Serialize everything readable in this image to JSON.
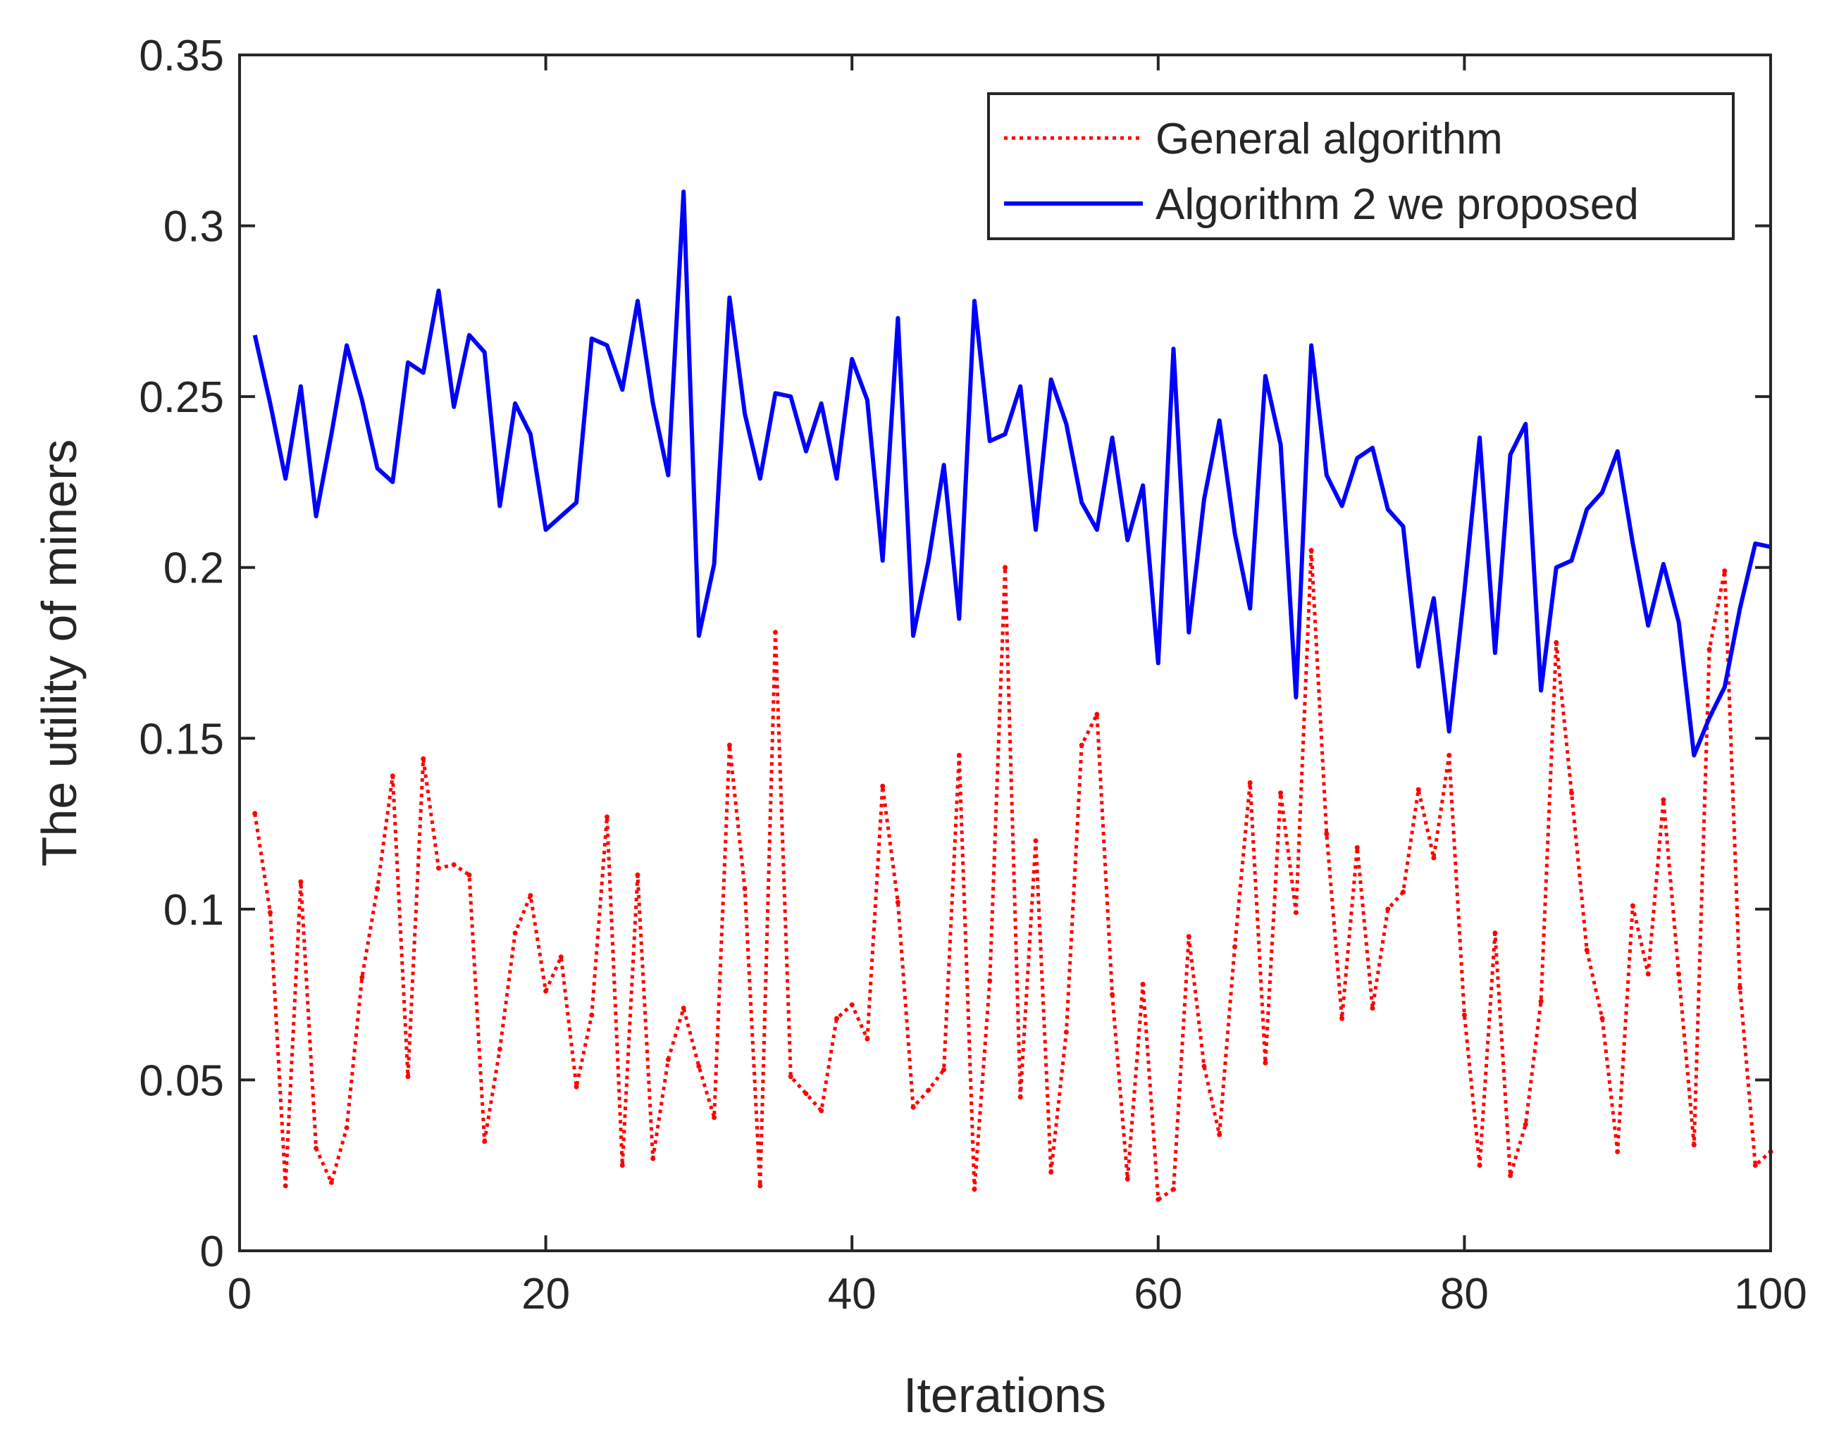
{
  "chart_data": {
    "type": "line",
    "title": "",
    "xlabel": "Iterations",
    "ylabel": "The utility of miners",
    "xlim": [
      0,
      100
    ],
    "ylim": [
      0,
      0.35
    ],
    "xticks": [
      0,
      20,
      40,
      60,
      80,
      100
    ],
    "xtick_labels": [
      "0",
      "20",
      "40",
      "60",
      "80",
      "100"
    ],
    "yticks": [
      0,
      0.05,
      0.1,
      0.15,
      0.2,
      0.25,
      0.3,
      0.35
    ],
    "ytick_labels": [
      "0",
      "0.05",
      "0.1",
      "0.15",
      "0.2",
      "0.25",
      "0.3",
      "0.35"
    ],
    "grid": false,
    "legend_position": "top-right",
    "x": [
      1,
      2,
      3,
      4,
      5,
      6,
      7,
      8,
      9,
      10,
      11,
      12,
      13,
      14,
      15,
      16,
      17,
      18,
      19,
      20,
      21,
      22,
      23,
      24,
      25,
      26,
      27,
      28,
      29,
      30,
      31,
      32,
      33,
      34,
      35,
      36,
      37,
      38,
      39,
      40,
      41,
      42,
      43,
      44,
      45,
      46,
      47,
      48,
      49,
      50,
      51,
      52,
      53,
      54,
      55,
      56,
      57,
      58,
      59,
      60,
      61,
      62,
      63,
      64,
      65,
      66,
      67,
      68,
      69,
      70,
      71,
      72,
      73,
      74,
      75,
      76,
      77,
      78,
      79,
      80,
      81,
      82,
      83,
      84,
      85,
      86,
      87,
      88,
      89,
      90,
      91,
      92,
      93,
      94,
      95,
      96,
      97,
      98,
      99,
      100
    ],
    "series": [
      {
        "name": "General algorithm",
        "color": "#ff0000",
        "style": "dotted",
        "values": [
          0.128,
          0.099,
          0.019,
          0.108,
          0.03,
          0.02,
          0.036,
          0.08,
          0.106,
          0.139,
          0.051,
          0.144,
          0.112,
          0.113,
          0.11,
          0.032,
          0.059,
          0.093,
          0.104,
          0.076,
          0.086,
          0.048,
          0.069,
          0.127,
          0.025,
          0.11,
          0.027,
          0.056,
          0.071,
          0.054,
          0.039,
          0.148,
          0.106,
          0.019,
          0.181,
          0.051,
          0.046,
          0.041,
          0.068,
          0.072,
          0.062,
          0.136,
          0.102,
          0.042,
          0.047,
          0.053,
          0.145,
          0.018,
          0.079,
          0.2,
          0.045,
          0.12,
          0.023,
          0.064,
          0.148,
          0.157,
          0.075,
          0.021,
          0.078,
          0.015,
          0.018,
          0.092,
          0.054,
          0.034,
          0.089,
          0.137,
          0.055,
          0.134,
          0.099,
          0.205,
          0.122,
          0.068,
          0.118,
          0.071,
          0.1,
          0.105,
          0.135,
          0.115,
          0.145,
          0.069,
          0.025,
          0.093,
          0.022,
          0.037,
          0.073,
          0.178,
          0.134,
          0.088,
          0.068,
          0.029,
          0.101,
          0.081,
          0.132,
          0.081,
          0.031,
          0.176,
          0.199,
          0.077,
          0.025,
          0.029
        ]
      },
      {
        "name": "Algorithm 2 we proposed",
        "color": "#0000ff",
        "style": "solid",
        "values": [
          0.268,
          0.248,
          0.226,
          0.253,
          0.215,
          0.239,
          0.265,
          0.249,
          0.229,
          0.225,
          0.26,
          0.257,
          0.281,
          0.247,
          0.268,
          0.263,
          0.218,
          0.248,
          0.239,
          0.211,
          0.215,
          0.219,
          0.267,
          0.265,
          0.252,
          0.278,
          0.248,
          0.227,
          0.31,
          0.18,
          0.201,
          0.279,
          0.245,
          0.226,
          0.251,
          0.25,
          0.234,
          0.248,
          0.226,
          0.261,
          0.249,
          0.202,
          0.273,
          0.18,
          0.202,
          0.23,
          0.185,
          0.278,
          0.237,
          0.239,
          0.253,
          0.211,
          0.255,
          0.242,
          0.219,
          0.211,
          0.238,
          0.208,
          0.224,
          0.172,
          0.264,
          0.181,
          0.22,
          0.243,
          0.21,
          0.188,
          0.256,
          0.236,
          0.162,
          0.265,
          0.227,
          0.218,
          0.232,
          0.235,
          0.217,
          0.212,
          0.171,
          0.191,
          0.152,
          0.193,
          0.238,
          0.175,
          0.233,
          0.242,
          0.164,
          0.2,
          0.202,
          0.217,
          0.222,
          0.234,
          0.207,
          0.183,
          0.201,
          0.184,
          0.145,
          0.156,
          0.165,
          0.188,
          0.207,
          0.206
        ]
      }
    ]
  }
}
